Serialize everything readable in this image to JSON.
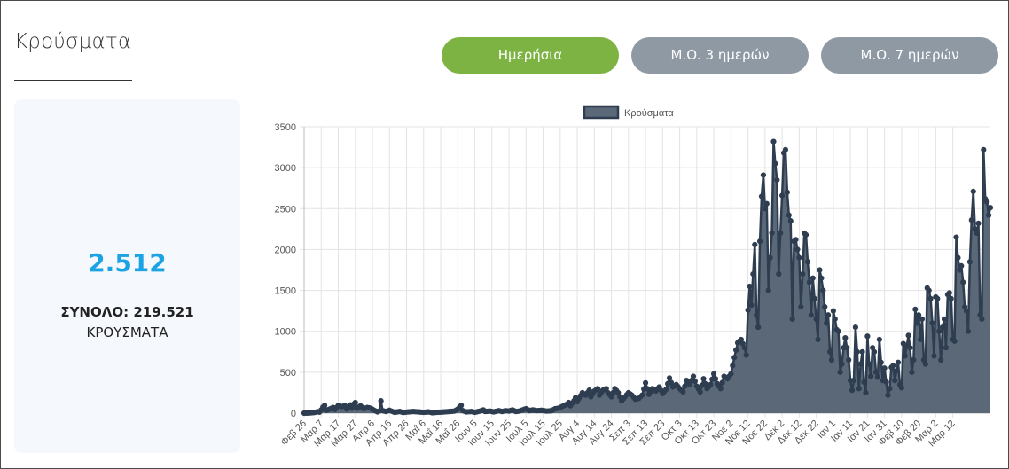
{
  "page": {
    "title": "Κρούσματα"
  },
  "tabs": [
    {
      "label": "Ημερήσια",
      "active": true
    },
    {
      "label": "Μ.Ο. 3 ημερών",
      "active": false
    },
    {
      "label": "Μ.Ο. 7 ημερών",
      "active": false
    }
  ],
  "summary": {
    "today_value": "2.512",
    "total_text": "ΣΥΝΟΛΟ: 219.521",
    "label": "ΚΡΟΥΣΜΑΤΑ"
  },
  "colors": {
    "accent_green": "#7cb342",
    "tab_gray": "#8e99a3",
    "number_blue": "#1ca3e3",
    "series_fill": "#5a6878",
    "series_line": "#2e3d50"
  },
  "chart_data": {
    "type": "area",
    "legend": {
      "label": "Κρούσματα",
      "position": "top"
    },
    "ylim": [
      0,
      3500
    ],
    "y_ticks": [
      0,
      500,
      1000,
      1500,
      2000,
      2500,
      3000,
      3500
    ],
    "grid": true,
    "x_ticks": [
      "Φεβ 26",
      "Μαρ 7",
      "Μαρ 17",
      "Μαρ 27",
      "Απρ 6",
      "Απρ 16",
      "Απρ 26",
      "Μαΐ 6",
      "Μαΐ 16",
      "Μαΐ 26",
      "Ιουν 5",
      "Ιουν 15",
      "Ιουν 25",
      "Ιουλ 5",
      "Ιουλ 15",
      "Ιουλ 25",
      "Αυγ 4",
      "Αυγ 14",
      "Αυγ 24",
      "Σεπ 3",
      "Σεπ 13",
      "Σεπ 23",
      "Οκτ 3",
      "Οκτ 13",
      "Οκτ 23",
      "Νοε 2",
      "Νοε 12",
      "Νοε 22",
      "Δεκ 2",
      "Δεκ 12",
      "Δεκ 22",
      "Ιαν 1",
      "Ιαν 11",
      "Ιαν 21",
      "Ιαν 31",
      "Φεβ 10",
      "Φεβ 20",
      "Μαρ 2",
      "Μαρ 12"
    ],
    "series": [
      {
        "name": "Κρούσματα",
        "anchors": [
          [
            0,
            0
          ],
          [
            3,
            2
          ],
          [
            6,
            8
          ],
          [
            8,
            18
          ],
          [
            9,
            12
          ],
          [
            10,
            40
          ],
          [
            11,
            75
          ],
          [
            12,
            95
          ],
          [
            13,
            35
          ],
          [
            15,
            50
          ],
          [
            17,
            70
          ],
          [
            18,
            45
          ],
          [
            20,
            95
          ],
          [
            22,
            80
          ],
          [
            24,
            90
          ],
          [
            25,
            50
          ],
          [
            27,
            100
          ],
          [
            28,
            60
          ],
          [
            29,
            110
          ],
          [
            30,
            130
          ],
          [
            31,
            60
          ],
          [
            33,
            90
          ],
          [
            35,
            55
          ],
          [
            37,
            70
          ],
          [
            39,
            60
          ],
          [
            41,
            35
          ],
          [
            43,
            15
          ],
          [
            44,
            25
          ],
          [
            45,
            150
          ],
          [
            46,
            30
          ],
          [
            48,
            20
          ],
          [
            50,
            35
          ],
          [
            53,
            10
          ],
          [
            56,
            20
          ],
          [
            58,
            8
          ],
          [
            61,
            15
          ],
          [
            64,
            20
          ],
          [
            67,
            15
          ],
          [
            70,
            10
          ],
          [
            73,
            15
          ],
          [
            75,
            5
          ],
          [
            78,
            10
          ],
          [
            80,
            12
          ],
          [
            82,
            15
          ],
          [
            85,
            20
          ],
          [
            88,
            25
          ],
          [
            90,
            50
          ],
          [
            92,
            95
          ],
          [
            93,
            30
          ],
          [
            95,
            15
          ],
          [
            98,
            20
          ],
          [
            100,
            10
          ],
          [
            103,
            25
          ],
          [
            105,
            40
          ],
          [
            106,
            20
          ],
          [
            109,
            25
          ],
          [
            111,
            15
          ],
          [
            114,
            30
          ],
          [
            116,
            20
          ],
          [
            118,
            30
          ],
          [
            120,
            25
          ],
          [
            122,
            40
          ],
          [
            124,
            20
          ],
          [
            126,
            25
          ],
          [
            128,
            40
          ],
          [
            130,
            55
          ],
          [
            132,
            30
          ],
          [
            134,
            40
          ],
          [
            136,
            30
          ],
          [
            139,
            35
          ],
          [
            142,
            25
          ],
          [
            145,
            30
          ],
          [
            147,
            55
          ],
          [
            149,
            60
          ],
          [
            151,
            80
          ],
          [
            153,
            100
          ],
          [
            154,
            110
          ],
          [
            155,
            130
          ],
          [
            156,
            90
          ],
          [
            158,
            150
          ],
          [
            159,
            190
          ],
          [
            160,
            140
          ],
          [
            161,
            180
          ],
          [
            163,
            250
          ],
          [
            165,
            220
          ],
          [
            167,
            280
          ],
          [
            168,
            200
          ],
          [
            170,
            270
          ],
          [
            172,
            300
          ],
          [
            173,
            220
          ],
          [
            175,
            280
          ],
          [
            177,
            300
          ],
          [
            178,
            250
          ],
          [
            180,
            200
          ],
          [
            182,
            300
          ],
          [
            184,
            250
          ],
          [
            186,
            150
          ],
          [
            188,
            200
          ],
          [
            190,
            250
          ],
          [
            192,
            220
          ],
          [
            194,
            170
          ],
          [
            196,
            180
          ],
          [
            198,
            220
          ],
          [
            200,
            370
          ],
          [
            202,
            230
          ],
          [
            204,
            300
          ],
          [
            206,
            270
          ],
          [
            208,
            320
          ],
          [
            210,
            240
          ],
          [
            212,
            290
          ],
          [
            214,
            430
          ],
          [
            216,
            320
          ],
          [
            218,
            350
          ],
          [
            220,
            300
          ],
          [
            222,
            260
          ],
          [
            224,
            400
          ],
          [
            226,
            350
          ],
          [
            228,
            450
          ],
          [
            230,
            330
          ],
          [
            232,
            260
          ],
          [
            234,
            420
          ],
          [
            236,
            300
          ],
          [
            238,
            350
          ],
          [
            240,
            480
          ],
          [
            242,
            360
          ],
          [
            244,
            300
          ],
          [
            246,
            450
          ],
          [
            248,
            420
          ],
          [
            250,
            480
          ],
          [
            252,
            680
          ],
          [
            254,
            860
          ],
          [
            256,
            900
          ],
          [
            258,
            800
          ],
          [
            259,
            710
          ],
          [
            260,
            1260
          ],
          [
            261,
            1550
          ],
          [
            262,
            1320
          ],
          [
            263,
            1700
          ],
          [
            264,
            2060
          ],
          [
            265,
            1200
          ],
          [
            266,
            1050
          ],
          [
            267,
            2100
          ],
          [
            268,
            2650
          ],
          [
            269,
            2910
          ],
          [
            270,
            2500
          ],
          [
            271,
            2560
          ],
          [
            272,
            1500
          ],
          [
            273,
            1900
          ],
          [
            274,
            2200
          ],
          [
            275,
            3320
          ],
          [
            276,
            3050
          ],
          [
            277,
            2850
          ],
          [
            278,
            1700
          ],
          [
            279,
            2200
          ],
          [
            280,
            2660
          ],
          [
            281,
            3180
          ],
          [
            282,
            3220
          ],
          [
            283,
            2700
          ],
          [
            284,
            2420
          ],
          [
            285,
            2350
          ],
          [
            286,
            1150
          ],
          [
            287,
            2100
          ],
          [
            288,
            2120
          ],
          [
            289,
            2000
          ],
          [
            290,
            1900
          ],
          [
            291,
            1300
          ],
          [
            292,
            1700
          ],
          [
            293,
            2200
          ],
          [
            294,
            2180
          ],
          [
            295,
            1850
          ],
          [
            296,
            1600
          ],
          [
            297,
            1200
          ],
          [
            298,
            1650
          ],
          [
            299,
            1400
          ],
          [
            300,
            1150
          ],
          [
            301,
            900
          ],
          [
            302,
            1750
          ],
          [
            303,
            1650
          ],
          [
            304,
            1500
          ],
          [
            305,
            1300
          ],
          [
            306,
            1100
          ],
          [
            307,
            1200
          ],
          [
            308,
            750
          ],
          [
            309,
            650
          ],
          [
            310,
            1250
          ],
          [
            311,
            1150
          ],
          [
            312,
            1020
          ],
          [
            313,
            1000
          ],
          [
            314,
            500
          ],
          [
            315,
            600
          ],
          [
            316,
            800
          ],
          [
            317,
            920
          ],
          [
            318,
            800
          ],
          [
            319,
            650
          ],
          [
            320,
            400
          ],
          [
            321,
            280
          ],
          [
            322,
            400
          ],
          [
            323,
            1050
          ],
          [
            324,
            750
          ],
          [
            325,
            300
          ],
          [
            326,
            600
          ],
          [
            327,
            750
          ],
          [
            328,
            380
          ],
          [
            329,
            250
          ],
          [
            330,
            940
          ],
          [
            331,
            600
          ],
          [
            332,
            450
          ],
          [
            333,
            800
          ],
          [
            334,
            750
          ],
          [
            335,
            500
          ],
          [
            336,
            440
          ],
          [
            337,
            900
          ],
          [
            338,
            620
          ],
          [
            339,
            400
          ],
          [
            340,
            550
          ],
          [
            341,
            380
          ],
          [
            342,
            220
          ],
          [
            343,
            300
          ],
          [
            344,
            560
          ],
          [
            345,
            580
          ],
          [
            346,
            400
          ],
          [
            347,
            520
          ],
          [
            348,
            620
          ],
          [
            349,
            350
          ],
          [
            350,
            310
          ],
          [
            351,
            850
          ],
          [
            352,
            700
          ],
          [
            353,
            820
          ],
          [
            354,
            950
          ],
          [
            355,
            800
          ],
          [
            356,
            500
          ],
          [
            357,
            650
          ],
          [
            358,
            1270
          ],
          [
            359,
            1100
          ],
          [
            360,
            1200
          ],
          [
            361,
            900
          ],
          [
            362,
            1150
          ],
          [
            363,
            650
          ],
          [
            364,
            600
          ],
          [
            365,
            1530
          ],
          [
            366,
            1500
          ],
          [
            367,
            1400
          ],
          [
            368,
            1100
          ],
          [
            369,
            700
          ],
          [
            370,
            1420
          ],
          [
            371,
            1400
          ],
          [
            372,
            1000
          ],
          [
            373,
            650
          ],
          [
            374,
            1050
          ],
          [
            375,
            1150
          ],
          [
            376,
            800
          ],
          [
            377,
            1450
          ],
          [
            378,
            1470
          ],
          [
            379,
            1400
          ],
          [
            380,
            900
          ],
          [
            381,
            880
          ],
          [
            382,
            2150
          ],
          [
            383,
            1900
          ],
          [
            384,
            1750
          ],
          [
            385,
            1800
          ],
          [
            386,
            1600
          ],
          [
            387,
            1300
          ],
          [
            388,
            1250
          ],
          [
            389,
            1000
          ],
          [
            390,
            1850
          ],
          [
            391,
            2360
          ],
          [
            392,
            2710
          ],
          [
            393,
            2250
          ],
          [
            394,
            2200
          ],
          [
            395,
            2320
          ],
          [
            396,
            1200
          ],
          [
            397,
            1150
          ],
          [
            398,
            3220
          ],
          [
            399,
            2620
          ],
          [
            400,
            2580
          ],
          [
            401,
            2420
          ],
          [
            402,
            2512
          ]
        ]
      }
    ]
  }
}
